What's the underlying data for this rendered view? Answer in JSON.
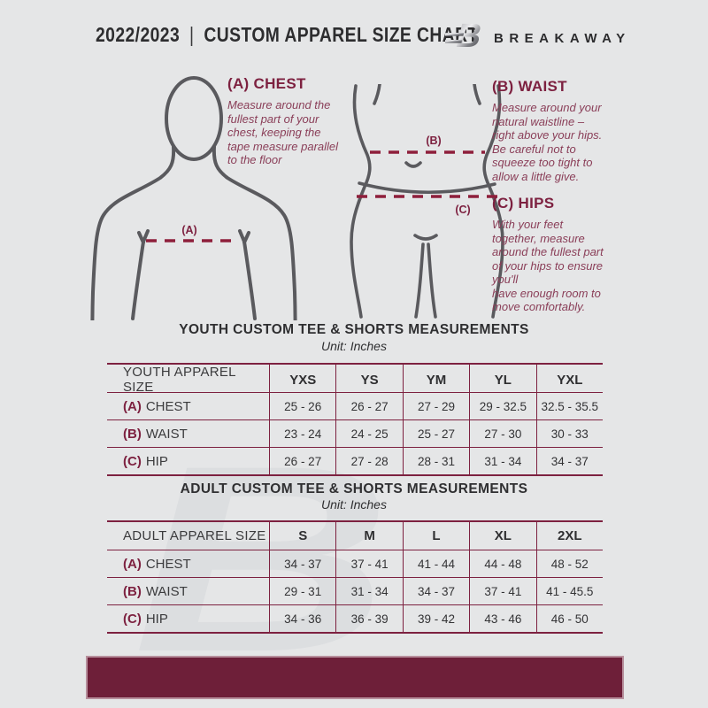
{
  "header": {
    "season": "2022/2023",
    "divider": "|",
    "title": "CUSTOM APPAREL SIZE CHART",
    "brand": "BREAKAWAY"
  },
  "colors": {
    "background": "#e5e6e7",
    "maroon_heading": "#7d2140",
    "maroon_dash": "#8e1f3b",
    "maroon_footer": "#6e1f39",
    "figure_stroke": "#5a5a5e",
    "text_dark": "#323234"
  },
  "guide": {
    "chest": {
      "heading": "(A) CHEST",
      "body": "Measure around the\nfullest part of your\nchest, keeping the\ntape measure parallel\nto the floor",
      "marker": "(A)"
    },
    "waist": {
      "heading": "(B) WAIST",
      "body": "Measure around your\nnatural waistline –\nright above your hips.\nBe careful not to\nsqueeze too tight to\nallow a little give.",
      "marker": "(B)"
    },
    "hips": {
      "heading": "(C) HIPS",
      "body": "With your feet\ntogether, measure\naround the fullest part\nof your hips to ensure\nyou'll\nhave enough room to\nmove comfortably.",
      "marker": "(C)"
    }
  },
  "youth_table": {
    "title": "YOUTH CUSTOM TEE & SHORTS MEASUREMENTS",
    "unit": "Unit: Inches",
    "columns": [
      "YOUTH APPAREL SIZE",
      "YXS",
      "YS",
      "YM",
      "YL",
      "YXL"
    ],
    "rows": [
      {
        "prefix": "(A)",
        "label": "CHEST",
        "values": [
          "25 - 26",
          "26 - 27",
          "27 - 29",
          "29 - 32.5",
          "32.5 - 35.5"
        ]
      },
      {
        "prefix": "(B)",
        "label": "WAIST",
        "values": [
          "23 - 24",
          "24 - 25",
          "25 - 27",
          "27 - 30",
          "30 - 33"
        ]
      },
      {
        "prefix": "(C)",
        "label": "HIP",
        "values": [
          "26 - 27",
          "27 - 28",
          "28 - 31",
          "31 - 34",
          "34 - 37"
        ]
      }
    ]
  },
  "adult_table": {
    "title": "ADULT CUSTOM TEE & SHORTS MEASUREMENTS",
    "unit": "Unit: Inches",
    "columns": [
      "ADULT APPAREL SIZE",
      "S",
      "M",
      "L",
      "XL",
      "2XL"
    ],
    "rows": [
      {
        "prefix": "(A)",
        "label": "CHEST",
        "values": [
          "34 - 37",
          "37 - 41",
          "41 - 44",
          "44 - 48",
          "48 - 52"
        ]
      },
      {
        "prefix": "(B)",
        "label": "WAIST",
        "values": [
          "29 - 31",
          "31 - 34",
          "34 - 37",
          "37 - 41",
          "41 - 45.5"
        ]
      },
      {
        "prefix": "(C)",
        "label": "HIP",
        "values": [
          "34 - 36",
          "36 - 39",
          "39 - 42",
          "43 - 46",
          "46 - 50"
        ]
      }
    ]
  },
  "watermark": "B"
}
